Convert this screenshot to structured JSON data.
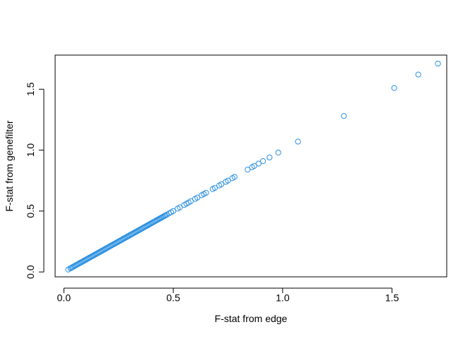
{
  "chart_data": {
    "type": "scatter",
    "title": "",
    "xlabel": "F-stat from edge",
    "ylabel": "F-stat from genefilter",
    "xlim": [
      -0.04,
      1.75
    ],
    "ylim": [
      -0.04,
      1.78
    ],
    "xticks": [
      0.0,
      0.5,
      1.0,
      1.5
    ],
    "xtick_labels": [
      "0.0",
      "0.5",
      "1.0",
      "1.5"
    ],
    "yticks": [
      0.0,
      0.5,
      1.0,
      1.5
    ],
    "ytick_labels": [
      "0.0",
      "0.5",
      "1.0",
      "1.5"
    ],
    "marker": "open-circle",
    "point_color": "#2a8fe0",
    "grid": false,
    "legend": "none",
    "points": [
      [
        0.02,
        0.02
      ],
      [
        0.03,
        0.03
      ],
      [
        0.035,
        0.035
      ],
      [
        0.04,
        0.04
      ],
      [
        0.045,
        0.045
      ],
      [
        0.05,
        0.05
      ],
      [
        0.055,
        0.055
      ],
      [
        0.06,
        0.06
      ],
      [
        0.065,
        0.065
      ],
      [
        0.07,
        0.07
      ],
      [
        0.075,
        0.075
      ],
      [
        0.08,
        0.08
      ],
      [
        0.085,
        0.085
      ],
      [
        0.09,
        0.09
      ],
      [
        0.095,
        0.095
      ],
      [
        0.1,
        0.1
      ],
      [
        0.105,
        0.105
      ],
      [
        0.11,
        0.11
      ],
      [
        0.115,
        0.115
      ],
      [
        0.12,
        0.12
      ],
      [
        0.125,
        0.125
      ],
      [
        0.13,
        0.13
      ],
      [
        0.135,
        0.135
      ],
      [
        0.14,
        0.14
      ],
      [
        0.145,
        0.145
      ],
      [
        0.15,
        0.15
      ],
      [
        0.155,
        0.155
      ],
      [
        0.16,
        0.16
      ],
      [
        0.165,
        0.165
      ],
      [
        0.17,
        0.17
      ],
      [
        0.175,
        0.175
      ],
      [
        0.18,
        0.18
      ],
      [
        0.185,
        0.185
      ],
      [
        0.19,
        0.19
      ],
      [
        0.195,
        0.195
      ],
      [
        0.2,
        0.2
      ],
      [
        0.205,
        0.205
      ],
      [
        0.21,
        0.21
      ],
      [
        0.215,
        0.215
      ],
      [
        0.22,
        0.22
      ],
      [
        0.225,
        0.225
      ],
      [
        0.23,
        0.23
      ],
      [
        0.235,
        0.235
      ],
      [
        0.24,
        0.24
      ],
      [
        0.245,
        0.245
      ],
      [
        0.25,
        0.25
      ],
      [
        0.255,
        0.255
      ],
      [
        0.26,
        0.26
      ],
      [
        0.265,
        0.265
      ],
      [
        0.27,
        0.27
      ],
      [
        0.275,
        0.275
      ],
      [
        0.28,
        0.28
      ],
      [
        0.285,
        0.285
      ],
      [
        0.29,
        0.29
      ],
      [
        0.295,
        0.295
      ],
      [
        0.3,
        0.3
      ],
      [
        0.305,
        0.305
      ],
      [
        0.31,
        0.31
      ],
      [
        0.315,
        0.315
      ],
      [
        0.32,
        0.32
      ],
      [
        0.325,
        0.325
      ],
      [
        0.33,
        0.33
      ],
      [
        0.335,
        0.335
      ],
      [
        0.34,
        0.34
      ],
      [
        0.345,
        0.345
      ],
      [
        0.35,
        0.35
      ],
      [
        0.355,
        0.355
      ],
      [
        0.36,
        0.36
      ],
      [
        0.365,
        0.365
      ],
      [
        0.37,
        0.37
      ],
      [
        0.375,
        0.375
      ],
      [
        0.38,
        0.38
      ],
      [
        0.385,
        0.385
      ],
      [
        0.39,
        0.39
      ],
      [
        0.395,
        0.395
      ],
      [
        0.4,
        0.4
      ],
      [
        0.405,
        0.405
      ],
      [
        0.41,
        0.41
      ],
      [
        0.415,
        0.415
      ],
      [
        0.42,
        0.42
      ],
      [
        0.425,
        0.425
      ],
      [
        0.43,
        0.43
      ],
      [
        0.435,
        0.435
      ],
      [
        0.44,
        0.44
      ],
      [
        0.445,
        0.445
      ],
      [
        0.45,
        0.45
      ],
      [
        0.455,
        0.455
      ],
      [
        0.46,
        0.46
      ],
      [
        0.465,
        0.465
      ],
      [
        0.47,
        0.47
      ],
      [
        0.48,
        0.48
      ],
      [
        0.49,
        0.49
      ],
      [
        0.5,
        0.5
      ],
      [
        0.52,
        0.52
      ],
      [
        0.53,
        0.53
      ],
      [
        0.55,
        0.55
      ],
      [
        0.56,
        0.56
      ],
      [
        0.57,
        0.57
      ],
      [
        0.58,
        0.58
      ],
      [
        0.6,
        0.6
      ],
      [
        0.61,
        0.61
      ],
      [
        0.63,
        0.63
      ],
      [
        0.64,
        0.64
      ],
      [
        0.65,
        0.65
      ],
      [
        0.68,
        0.68
      ],
      [
        0.69,
        0.69
      ],
      [
        0.71,
        0.71
      ],
      [
        0.72,
        0.72
      ],
      [
        0.74,
        0.74
      ],
      [
        0.75,
        0.75
      ],
      [
        0.77,
        0.77
      ],
      [
        0.78,
        0.78
      ],
      [
        0.84,
        0.84
      ],
      [
        0.86,
        0.86
      ],
      [
        0.87,
        0.87
      ],
      [
        0.89,
        0.89
      ],
      [
        0.91,
        0.91
      ],
      [
        0.94,
        0.94
      ],
      [
        0.98,
        0.98
      ],
      [
        1.07,
        1.07
      ],
      [
        1.28,
        1.28
      ],
      [
        1.51,
        1.51
      ],
      [
        1.62,
        1.62
      ],
      [
        1.71,
        1.71
      ]
    ]
  }
}
